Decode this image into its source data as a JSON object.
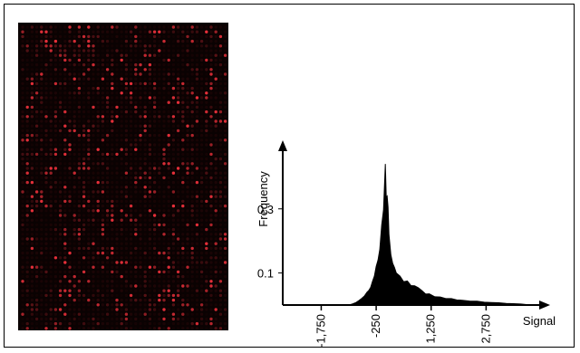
{
  "figure": {
    "panel_image": "microarray-fluorescence-image",
    "spot_color": "#e8303a",
    "background_color": "#0a0202"
  },
  "chart_data": {
    "type": "area",
    "ylabel": "Frequency",
    "xlabel": "Signal",
    "x_ticks": [
      "-1,750",
      "-250",
      "1,250",
      "2,750"
    ],
    "x_tick_values": [
      -1750,
      -250,
      1250,
      2750
    ],
    "y_ticks": [
      "0.3",
      "0.1"
    ],
    "y_tick_values": [
      0.3,
      0.1
    ],
    "xlim": [
      -2800,
      4200
    ],
    "ylim": [
      0,
      0.48
    ],
    "series_color": "#000000",
    "x": [
      -1000,
      -800,
      -650,
      -500,
      -400,
      -300,
      -200,
      -100,
      0,
      50,
      100,
      200,
      300,
      400,
      600,
      800,
      1000,
      1200,
      1500,
      1800,
      2100,
      2500,
      2900,
      3300,
      3700,
      4000
    ],
    "values": [
      0,
      0.008,
      0.02,
      0.04,
      0.055,
      0.09,
      0.14,
      0.25,
      0.44,
      0.34,
      0.22,
      0.13,
      0.1,
      0.09,
      0.075,
      0.06,
      0.045,
      0.035,
      0.025,
      0.02,
      0.015,
      0.012,
      0.008,
      0.005,
      0.003,
      0
    ]
  }
}
